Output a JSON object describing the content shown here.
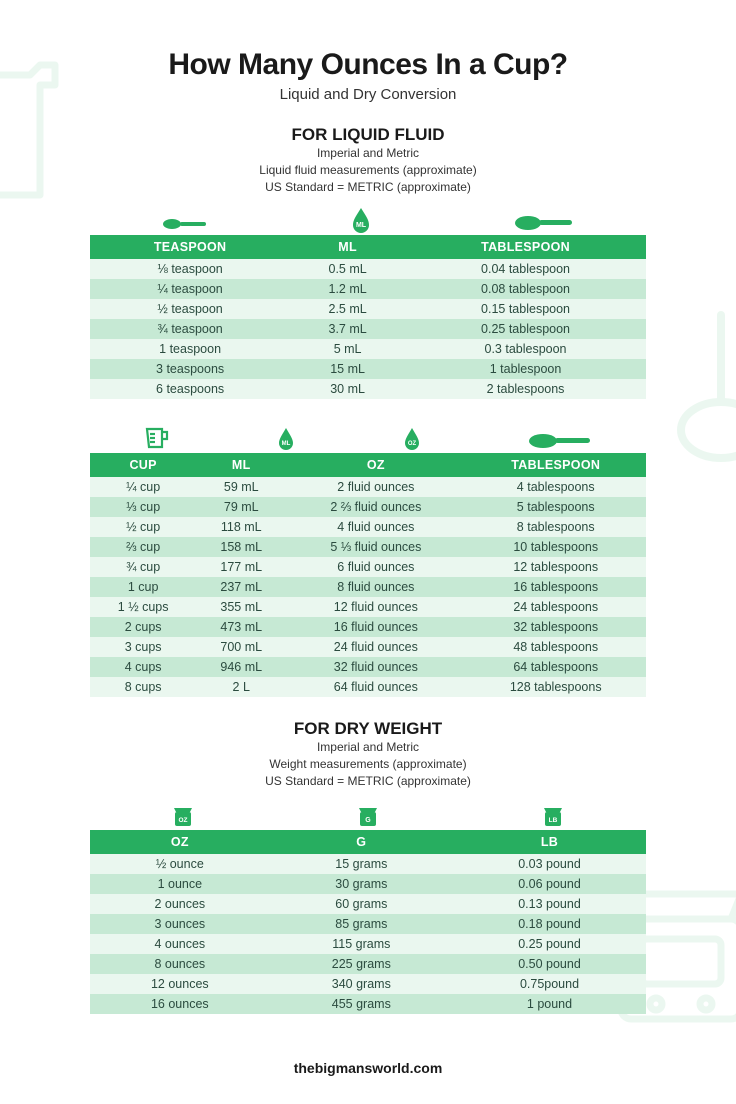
{
  "colors": {
    "brand_green": "#27ae60",
    "row_light": "#eaf7ef",
    "row_dark": "#c6e9d4",
    "deco": "#b8e5cb",
    "text": "#1a1a1a",
    "cell_text": "#2b4b3f"
  },
  "header": {
    "title": "How Many Ounces In a Cup?",
    "subtitle": "Liquid and Dry Conversion"
  },
  "liquid": {
    "heading": "FOR LIQUID FLUID",
    "sub1": "Imperial and Metric",
    "sub2": "Liquid fluid measurements (approximate)",
    "sub3": "US Standard = METRIC (approximate)",
    "table1": {
      "columns": [
        "TEASPOON",
        "ML",
        "TABLESPOON"
      ],
      "rows": [
        [
          "⅛ teaspoon",
          "0.5 mL",
          "0.04 tablespoon"
        ],
        [
          "¼ teaspoon",
          "1.2 mL",
          "0.08 tablespoon"
        ],
        [
          "½ teaspoon",
          "2.5 mL",
          "0.15 tablespoon"
        ],
        [
          "¾ teaspoon",
          "3.7 mL",
          "0.25 tablespoon"
        ],
        [
          "1 teaspoon",
          "5 mL",
          "0.3 tablespoon"
        ],
        [
          "3 teaspoons",
          "15 mL",
          "1 tablespoon"
        ],
        [
          "6 teaspoons",
          "30 mL",
          "2 tablespoons"
        ]
      ]
    },
    "table2": {
      "columns": [
        "CUP",
        "ML",
        "OZ",
        "TABLESPOON"
      ],
      "rows": [
        [
          "¼ cup",
          "59 mL",
          "2 fluid ounces",
          "4 tablespoons"
        ],
        [
          "⅓ cup",
          "79 mL",
          "2 ⅔ fluid ounces",
          "5 tablespoons"
        ],
        [
          "½ cup",
          "118 mL",
          "4 fluid ounces",
          "8 tablespoons"
        ],
        [
          "⅔ cup",
          "158 mL",
          "5 ⅓ fluid ounces",
          "10 tablespoons"
        ],
        [
          "¾ cup",
          "177 mL",
          "6 fluid ounces",
          "12 tablespoons"
        ],
        [
          "1 cup",
          "237 mL",
          "8 fluid ounces",
          "16 tablespoons"
        ],
        [
          "1 ½ cups",
          "355 mL",
          "12 fluid ounces",
          "24 tablespoons"
        ],
        [
          "2 cups",
          "473 mL",
          "16 fluid ounces",
          "32 tablespoons"
        ],
        [
          "3 cups",
          "700 mL",
          "24 fluid ounces",
          "48 tablespoons"
        ],
        [
          "4 cups",
          "946 mL",
          "32 fluid ounces",
          "64 tablespoons"
        ],
        [
          "8 cups",
          "2 L",
          "64 fluid ounces",
          "128 tablespoons"
        ]
      ]
    }
  },
  "dry": {
    "heading": "FOR DRY WEIGHT",
    "sub1": "Imperial and Metric",
    "sub2": "Weight measurements (approximate)",
    "sub3": "US Standard = METRIC (approximate)",
    "table": {
      "columns": [
        "OZ",
        "G",
        "LB"
      ],
      "rows": [
        [
          "½ ounce",
          "15 grams",
          "0.03 pound"
        ],
        [
          "1 ounce",
          "30 grams",
          "0.06 pound"
        ],
        [
          "2 ounces",
          "60 grams",
          "0.13 pound"
        ],
        [
          "3 ounces",
          "85 grams",
          "0.18 pound"
        ],
        [
          "4 ounces",
          "115 grams",
          "0.25 pound"
        ],
        [
          "8 ounces",
          "225 grams",
          "0.50 pound"
        ],
        [
          "12 ounces",
          "340 grams",
          "0.75pound"
        ],
        [
          "16 ounces",
          "455 grams",
          "1 pound"
        ]
      ]
    }
  },
  "footer": "thebigmansworld.com"
}
